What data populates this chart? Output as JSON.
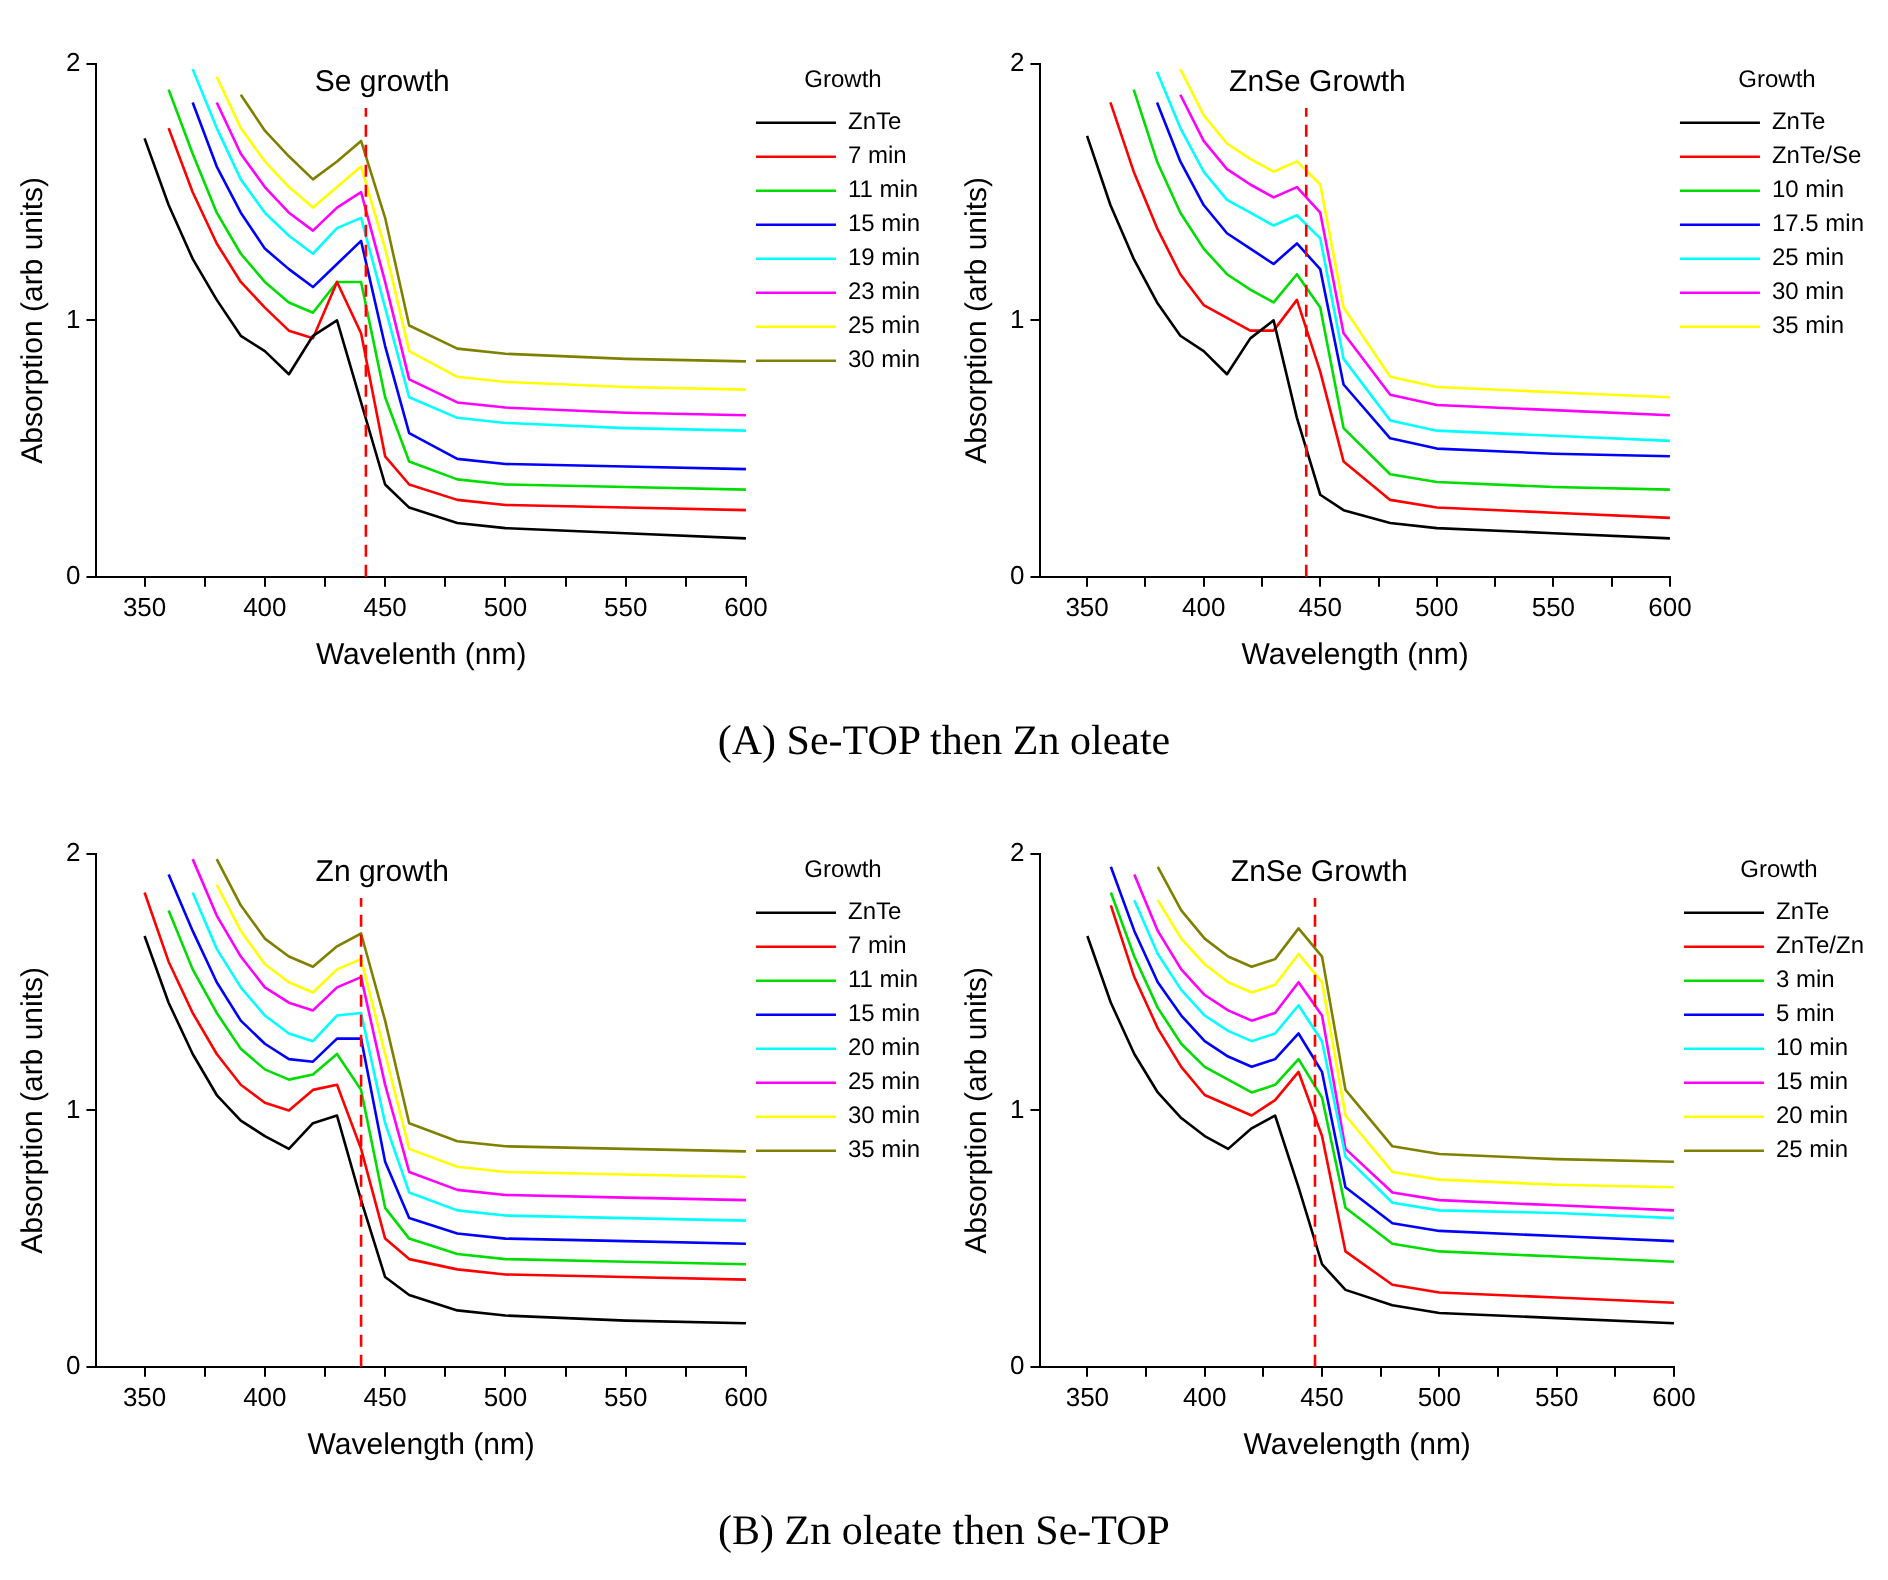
{
  "chart_data": [
    {
      "type": "line",
      "title": "Se growth",
      "xlabel": "Wavelenth (nm)",
      "ylabel": "Absorption (arb units)",
      "legend_title": "Growth",
      "legend": "top right",
      "grid": false,
      "marker": "none",
      "line_style": "solid",
      "xlim": [
        330,
        600
      ],
      "xticks": [
        350,
        {
          "value": 375,
          "label": null
        },
        400,
        {
          "value": 425,
          "label": null
        },
        450,
        {
          "value": 475,
          "label": null
        },
        500,
        {
          "value": 525,
          "label": null
        },
        550,
        {
          "value": 575,
          "label": null
        },
        600
      ],
      "ylim": [
        0,
        2
      ],
      "yticks": [
        0,
        1,
        2
      ],
      "x": [
        350,
        360,
        370,
        380,
        390,
        400,
        410,
        420,
        430,
        440,
        450,
        460,
        480,
        500,
        550,
        600
      ],
      "ref_lines": [
        {
          "axis": "x",
          "value": 442,
          "color": "#ff0000",
          "line_style": "dashed"
        }
      ],
      "annotations": [
        "(A) Se-TOP then Zn oleate"
      ],
      "series": [
        {
          "name": "ZnTe",
          "color": "#000000",
          "values": [
            1.71,
            1.45,
            1.24,
            1.08,
            0.94,
            0.88,
            0.79,
            0.94,
            1.0,
            0.68,
            0.36,
            0.27,
            0.21,
            0.19,
            0.17,
            0.15
          ]
        },
        {
          "name": "7 min",
          "color": "#ff0000",
          "values": [
            null,
            1.75,
            1.5,
            1.3,
            1.15,
            1.05,
            0.96,
            0.93,
            1.15,
            0.95,
            0.47,
            0.36,
            0.3,
            0.28,
            0.27,
            0.26
          ]
        },
        {
          "name": "11 min",
          "color": "#00dd00",
          "values": [
            null,
            1.9,
            1.65,
            1.42,
            1.26,
            1.15,
            1.07,
            1.03,
            1.15,
            1.15,
            0.7,
            0.45,
            0.38,
            0.36,
            0.35,
            0.34
          ]
        },
        {
          "name": "15 min",
          "color": "#0000ff",
          "values": [
            null,
            null,
            1.85,
            1.6,
            1.42,
            1.28,
            1.2,
            1.13,
            1.22,
            1.31,
            0.9,
            0.56,
            0.46,
            0.44,
            0.43,
            0.42
          ]
        },
        {
          "name": "19 min",
          "color": "#00ffff",
          "values": [
            null,
            null,
            1.98,
            1.75,
            1.55,
            1.42,
            1.33,
            1.26,
            1.36,
            1.4,
            1.05,
            0.7,
            0.62,
            0.6,
            0.58,
            0.57
          ]
        },
        {
          "name": "23 min",
          "color": "#ff00ff",
          "values": [
            null,
            null,
            null,
            1.85,
            1.65,
            1.52,
            1.42,
            1.35,
            1.44,
            1.5,
            1.15,
            0.77,
            0.68,
            0.66,
            0.64,
            0.63
          ]
        },
        {
          "name": "25 min",
          "color": "#ffff00",
          "values": [
            null,
            null,
            null,
            1.95,
            1.75,
            1.62,
            1.52,
            1.44,
            1.52,
            1.6,
            1.28,
            0.88,
            0.78,
            0.76,
            0.74,
            0.73
          ]
        },
        {
          "name": "30 min",
          "color": "#808000",
          "values": [
            null,
            null,
            null,
            null,
            1.88,
            1.74,
            1.64,
            1.55,
            1.62,
            1.7,
            1.4,
            0.98,
            0.89,
            0.87,
            0.85,
            0.84
          ]
        }
      ]
    },
    {
      "type": "line",
      "title": "ZnSe Growth",
      "xlabel": "Wavelength (nm)",
      "ylabel": "Absorption (arb units)",
      "legend_title": "Growth",
      "legend": "top right",
      "grid": false,
      "marker": "none",
      "line_style": "solid",
      "xlim": [
        330,
        600
      ],
      "xticks": [
        350,
        {
          "value": 375,
          "label": null
        },
        400,
        {
          "value": 425,
          "label": null
        },
        450,
        {
          "value": 475,
          "label": null
        },
        500,
        {
          "value": 525,
          "label": null
        },
        550,
        {
          "value": 575,
          "label": null
        },
        600
      ],
      "ylim": [
        0,
        2
      ],
      "yticks": [
        0,
        1,
        2
      ],
      "x": [
        350,
        360,
        370,
        380,
        390,
        400,
        410,
        420,
        430,
        440,
        450,
        460,
        480,
        500,
        550,
        600
      ],
      "ref_lines": [
        {
          "axis": "x",
          "value": 444,
          "color": "#ff0000",
          "line_style": "dashed"
        }
      ],
      "series": [
        {
          "name": "ZnTe",
          "color": "#000000",
          "values": [
            1.72,
            1.45,
            1.24,
            1.07,
            0.94,
            0.88,
            0.79,
            0.93,
            1.0,
            0.62,
            0.32,
            0.26,
            0.21,
            0.19,
            0.17,
            0.15
          ]
        },
        {
          "name": "ZnTe/Se",
          "color": "#ff0000",
          "values": [
            null,
            1.85,
            1.58,
            1.36,
            1.18,
            1.06,
            1.01,
            0.96,
            0.96,
            1.08,
            0.8,
            0.45,
            0.3,
            0.27,
            0.25,
            0.23
          ]
        },
        {
          "name": "10 min",
          "color": "#00dd00",
          "values": [
            null,
            null,
            1.9,
            1.62,
            1.42,
            1.28,
            1.18,
            1.12,
            1.07,
            1.18,
            1.05,
            0.58,
            0.4,
            0.37,
            0.35,
            0.34
          ]
        },
        {
          "name": "17.5 min",
          "color": "#0000ff",
          "values": [
            null,
            null,
            null,
            1.85,
            1.62,
            1.45,
            1.34,
            1.28,
            1.22,
            1.3,
            1.2,
            0.75,
            0.54,
            0.5,
            0.48,
            0.47
          ]
        },
        {
          "name": "25 min",
          "color": "#00ffff",
          "values": [
            null,
            null,
            null,
            1.97,
            1.75,
            1.58,
            1.47,
            1.42,
            1.37,
            1.41,
            1.32,
            0.85,
            0.61,
            0.57,
            0.55,
            0.53
          ]
        },
        {
          "name": "30 min",
          "color": "#ff00ff",
          "values": [
            null,
            null,
            null,
            null,
            1.88,
            1.7,
            1.59,
            1.53,
            1.48,
            1.52,
            1.42,
            0.95,
            0.71,
            0.67,
            0.65,
            0.63
          ]
        },
        {
          "name": "35 min",
          "color": "#ffff00",
          "values": [
            null,
            null,
            null,
            null,
            1.98,
            1.8,
            1.69,
            1.63,
            1.58,
            1.62,
            1.53,
            1.05,
            0.78,
            0.74,
            0.72,
            0.7
          ]
        }
      ]
    },
    {
      "type": "line",
      "title": "Zn growth",
      "xlabel": "Wavelength (nm)",
      "ylabel": "Absorption (arb units)",
      "legend_title": "Growth",
      "legend": "top right",
      "grid": false,
      "marker": "none",
      "line_style": "solid",
      "xlim": [
        330,
        600
      ],
      "xticks": [
        350,
        {
          "value": 375,
          "label": null
        },
        400,
        {
          "value": 425,
          "label": null
        },
        450,
        {
          "value": 475,
          "label": null
        },
        500,
        {
          "value": 525,
          "label": null
        },
        550,
        {
          "value": 575,
          "label": null
        },
        600
      ],
      "ylim": [
        0,
        2
      ],
      "yticks": [
        0,
        1,
        2
      ],
      "x": [
        350,
        360,
        370,
        380,
        390,
        400,
        410,
        420,
        430,
        440,
        450,
        460,
        480,
        500,
        550,
        600
      ],
      "ref_lines": [
        {
          "axis": "x",
          "value": 440,
          "color": "#ff0000",
          "line_style": "dashed"
        }
      ],
      "annotations": [
        "(B) Zn oleate then Se-TOP"
      ],
      "series": [
        {
          "name": "ZnTe",
          "color": "#000000",
          "values": [
            1.68,
            1.42,
            1.22,
            1.06,
            0.96,
            0.9,
            0.85,
            0.95,
            0.98,
            0.65,
            0.35,
            0.28,
            0.22,
            0.2,
            0.18,
            0.17
          ]
        },
        {
          "name": "7 min",
          "color": "#ff0000",
          "values": [
            1.85,
            1.58,
            1.38,
            1.22,
            1.1,
            1.03,
            1.0,
            1.08,
            1.1,
            0.85,
            0.5,
            0.42,
            0.38,
            0.36,
            0.35,
            0.34
          ]
        },
        {
          "name": "11 min",
          "color": "#00dd00",
          "values": [
            null,
            1.78,
            1.55,
            1.38,
            1.24,
            1.16,
            1.12,
            1.14,
            1.22,
            1.08,
            0.62,
            0.5,
            0.44,
            0.42,
            0.41,
            0.4
          ]
        },
        {
          "name": "15 min",
          "color": "#0000ff",
          "values": [
            null,
            1.92,
            1.7,
            1.5,
            1.35,
            1.26,
            1.2,
            1.19,
            1.28,
            1.28,
            0.8,
            0.58,
            0.52,
            0.5,
            0.49,
            0.48
          ]
        },
        {
          "name": "20 min",
          "color": "#00ffff",
          "values": [
            null,
            null,
            1.85,
            1.63,
            1.48,
            1.37,
            1.3,
            1.27,
            1.37,
            1.38,
            0.95,
            0.68,
            0.61,
            0.59,
            0.58,
            0.57
          ]
        },
        {
          "name": "25 min",
          "color": "#ff00ff",
          "values": [
            null,
            null,
            1.98,
            1.76,
            1.6,
            1.48,
            1.42,
            1.39,
            1.48,
            1.52,
            1.1,
            0.76,
            0.69,
            0.67,
            0.66,
            0.65
          ]
        },
        {
          "name": "30 min",
          "color": "#ffff00",
          "values": [
            null,
            null,
            null,
            1.88,
            1.7,
            1.57,
            1.5,
            1.46,
            1.55,
            1.59,
            1.22,
            0.85,
            0.78,
            0.76,
            0.75,
            0.74
          ]
        },
        {
          "name": "35 min",
          "color": "#808000",
          "values": [
            null,
            null,
            null,
            1.98,
            1.8,
            1.67,
            1.6,
            1.56,
            1.64,
            1.69,
            1.35,
            0.95,
            0.88,
            0.86,
            0.85,
            0.84
          ]
        }
      ]
    },
    {
      "type": "line",
      "title": "ZnSe Growth",
      "xlabel": "Wavelength (nm)",
      "ylabel": "Absorption (arb units)",
      "legend_title": "Growth",
      "legend": "top right",
      "grid": false,
      "marker": "none",
      "line_style": "solid",
      "xlim": [
        330,
        600
      ],
      "xticks": [
        350,
        {
          "value": 375,
          "label": null
        },
        400,
        {
          "value": 425,
          "label": null
        },
        450,
        {
          "value": 475,
          "label": null
        },
        500,
        {
          "value": 525,
          "label": null
        },
        550,
        {
          "value": 575,
          "label": null
        },
        600
      ],
      "ylim": [
        0,
        2
      ],
      "yticks": [
        0,
        1,
        2
      ],
      "x": [
        350,
        360,
        370,
        380,
        390,
        400,
        410,
        420,
        430,
        440,
        450,
        460,
        480,
        500,
        550,
        600
      ],
      "ref_lines": [
        {
          "axis": "x",
          "value": 447,
          "color": "#ff0000",
          "line_style": "dashed"
        }
      ],
      "series": [
        {
          "name": "ZnTe",
          "color": "#000000",
          "values": [
            1.68,
            1.42,
            1.22,
            1.07,
            0.97,
            0.9,
            0.85,
            0.93,
            0.98,
            0.7,
            0.4,
            0.3,
            0.24,
            0.21,
            0.19,
            0.17
          ]
        },
        {
          "name": "ZnTe/Zn",
          "color": "#ff0000",
          "values": [
            null,
            1.8,
            1.52,
            1.32,
            1.17,
            1.06,
            1.02,
            0.98,
            1.04,
            1.15,
            0.9,
            0.45,
            0.32,
            0.29,
            0.27,
            0.25
          ]
        },
        {
          "name": "3 min",
          "color": "#00dd00",
          "values": [
            null,
            1.85,
            1.6,
            1.4,
            1.26,
            1.17,
            1.12,
            1.07,
            1.1,
            1.2,
            1.05,
            0.62,
            0.48,
            0.45,
            0.43,
            0.41
          ]
        },
        {
          "name": "5 min",
          "color": "#0000ff",
          "values": [
            null,
            1.95,
            1.7,
            1.5,
            1.37,
            1.27,
            1.21,
            1.17,
            1.2,
            1.3,
            1.15,
            0.7,
            0.56,
            0.53,
            0.51,
            0.49
          ]
        },
        {
          "name": "10 min",
          "color": "#00ffff",
          "values": [
            null,
            null,
            1.82,
            1.61,
            1.47,
            1.37,
            1.31,
            1.27,
            1.3,
            1.41,
            1.27,
            0.82,
            0.64,
            0.61,
            0.6,
            0.58
          ]
        },
        {
          "name": "15 min",
          "color": "#ff00ff",
          "values": [
            null,
            null,
            1.92,
            1.7,
            1.55,
            1.45,
            1.39,
            1.35,
            1.38,
            1.5,
            1.37,
            0.85,
            0.68,
            0.65,
            0.63,
            0.61
          ]
        },
        {
          "name": "20 min",
          "color": "#ffff00",
          "values": [
            null,
            null,
            null,
            1.82,
            1.67,
            1.57,
            1.5,
            1.46,
            1.49,
            1.61,
            1.5,
            0.98,
            0.76,
            0.73,
            0.71,
            0.7
          ]
        },
        {
          "name": "25 min",
          "color": "#808000",
          "values": [
            null,
            null,
            null,
            1.95,
            1.78,
            1.67,
            1.6,
            1.56,
            1.59,
            1.71,
            1.6,
            1.08,
            0.86,
            0.83,
            0.81,
            0.8
          ]
        }
      ]
    }
  ]
}
